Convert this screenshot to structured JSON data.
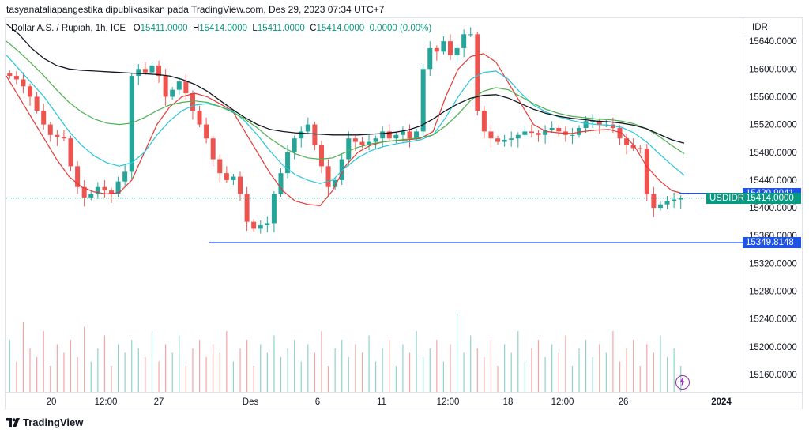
{
  "publisher_line": "tasyanataliapangestika dipublikasikan pada TradingView.com, Des 29, 2023 07:34 UTC+7",
  "legend": {
    "symbol": "Dollar A.S. / Rupiah, 1h, ICE",
    "o_label": "O",
    "o_value": "15411.0000",
    "h_label": "H",
    "h_value": "15414.0000",
    "l_label": "L",
    "l_value": "15411.0000",
    "c_label": "C",
    "c_value": "15414.0000",
    "change": "0.0000 (0.00%)"
  },
  "currency_label": "IDR",
  "brand": "TradingView",
  "colors": {
    "up": "#26a69a",
    "down": "#ef5350",
    "ema_fast": "#e53935",
    "ema_mid": "#26c6da",
    "ema_slow": "#4caf50",
    "sma_long": "#131722",
    "level_line": "#1e53e5",
    "price_tag": "#089981"
  },
  "chart_data": {
    "type": "candlestick",
    "ylim": [
      15135,
      15672
    ],
    "x_ticks": [
      "20",
      "12:00",
      "27",
      "Des",
      "6",
      "11",
      "12:00",
      "18",
      "12:00",
      "26",
      "2024"
    ],
    "y_ticks": [
      "15160.0000",
      "15200.0000",
      "15240.0000",
      "15280.0000",
      "15320.0000",
      "15360.0000",
      "15400.0000",
      "15440.0000",
      "15480.0000",
      "15520.0000",
      "15560.0000",
      "15600.0000",
      "15640.0000"
    ],
    "y_tick_values": [
      15160,
      15200,
      15240,
      15280,
      15320,
      15360,
      15400,
      15440,
      15480,
      15520,
      15560,
      15600,
      15640
    ],
    "price_labels": [
      {
        "label": "15420.9041",
        "value": 15420.9041,
        "kind": "level"
      },
      {
        "label": "15414.0000",
        "value": 15414,
        "kind": "last",
        "symbol": "USDIDR"
      },
      {
        "label": "15349.8148",
        "value": 15349.8148,
        "kind": "level"
      }
    ],
    "closes": [
      15590,
      15585,
      15575,
      15560,
      15540,
      15520,
      15505,
      15502,
      15500,
      15460,
      15430,
      15415,
      15420,
      15430,
      15425,
      15420,
      15438,
      15452,
      15590,
      15600,
      15595,
      15605,
      15590,
      15560,
      15570,
      15582,
      15565,
      15540,
      15520,
      15500,
      15470,
      15450,
      15440,
      15445,
      15420,
      15380,
      15370,
      15375,
      15378,
      15420,
      15450,
      15480,
      15500,
      15510,
      15520,
      15490,
      15460,
      15430,
      15440,
      15470,
      15500,
      15495,
      15490,
      15495,
      15500,
      15510,
      15500,
      15505,
      15510,
      15500,
      15510,
      15600,
      15630,
      15625,
      15640,
      15620,
      15630,
      15650,
      15650,
      15540,
      15510,
      15500,
      15495,
      15498,
      15500,
      15505,
      15510,
      15508,
      15505,
      15512,
      15515,
      15510,
      15505,
      15505,
      15515,
      15525,
      15525,
      15520,
      15520,
      15515,
      15500,
      15490,
      15486,
      15485,
      15420,
      15400,
      15405,
      15410,
      15412,
      15414
    ],
    "volumes": [
      0.6,
      0.35,
      0.8,
      0.5,
      0.4,
      0.7,
      0.3,
      0.55,
      0.45,
      0.6,
      0.4,
      0.75,
      0.35,
      0.5,
      0.65,
      0.3,
      0.55,
      0.45,
      0.6,
      0.5,
      0.4,
      0.7,
      0.35,
      0.55,
      0.45,
      0.65,
      0.3,
      0.5,
      0.6,
      0.4,
      0.55,
      0.45,
      0.7,
      0.35,
      0.5,
      0.6,
      0.3,
      0.55,
      0.45,
      0.65,
      0.4,
      0.5,
      0.6,
      0.35,
      0.55,
      0.45,
      0.7,
      0.3,
      0.5,
      0.6,
      0.4,
      0.55,
      0.45,
      0.65,
      0.35,
      0.5,
      0.6,
      0.3,
      0.55,
      0.45,
      0.7,
      0.4,
      0.5,
      0.6,
      0.35,
      0.55,
      0.9,
      0.45,
      0.65,
      0.5,
      0.4,
      0.6,
      0.3,
      0.55,
      0.45,
      0.7,
      0.35,
      0.5,
      0.6,
      0.4,
      0.55,
      0.45,
      0.65,
      0.3,
      0.5,
      0.6,
      0.4,
      0.55,
      0.45,
      0.7,
      0.35,
      0.5,
      0.6,
      0.3,
      0.55,
      0.45,
      0.65,
      0.4,
      0.5,
      0.3
    ],
    "ma_lines": [
      {
        "key": "ema_fast",
        "values": [
          15590,
          15560,
          15530,
          15500,
          15470,
          15445,
          15430,
          15423,
          15420,
          15422,
          15440,
          15480,
          15520,
          15545,
          15560,
          15565,
          15560,
          15550,
          15540,
          15510,
          15480,
          15450,
          15425,
          15410,
          15405,
          15403,
          15425,
          15460,
          15480,
          15490,
          15495,
          15497,
          15498,
          15500,
          15510,
          15560,
          15600,
          15618,
          15622,
          15610,
          15580,
          15550,
          15520,
          15510,
          15508,
          15507,
          15510,
          15512,
          15513,
          15508,
          15490,
          15460,
          15440,
          15425,
          15420
        ]
      },
      {
        "key": "ema_mid",
        "values": [
          15620,
          15600,
          15580,
          15560,
          15535,
          15510,
          15490,
          15475,
          15465,
          15460,
          15465,
          15480,
          15505,
          15525,
          15540,
          15548,
          15550,
          15546,
          15540,
          15525,
          15505,
          15482,
          15462,
          15448,
          15440,
          15435,
          15440,
          15458,
          15472,
          15482,
          15488,
          15492,
          15495,
          15498,
          15505,
          15530,
          15560,
          15585,
          15595,
          15597,
          15585,
          15565,
          15548,
          15538,
          15531,
          15526,
          15522,
          15520,
          15519,
          15516,
          15508,
          15495,
          15478,
          15462,
          15447
        ]
      },
      {
        "key": "ema_slow",
        "values": [
          15640,
          15625,
          15608,
          15590,
          15570,
          15552,
          15538,
          15528,
          15522,
          15520,
          15522,
          15530,
          15540,
          15548,
          15552,
          15554,
          15552,
          15546,
          15538,
          15528,
          15515,
          15500,
          15488,
          15478,
          15472,
          15470,
          15472,
          15480,
          15487,
          15492,
          15495,
          15497,
          15499,
          15501,
          15505,
          15518,
          15535,
          15555,
          15568,
          15573,
          15570,
          15560,
          15550,
          15542,
          15536,
          15532,
          15530,
          15528,
          15527,
          15525,
          15521,
          15514,
          15503,
          15490,
          15478
        ]
      },
      {
        "key": "sma_long",
        "values": [
          15665,
          15650,
          15630,
          15615,
          15605,
          15600,
          15598,
          15597,
          15596,
          15595,
          15594,
          15593,
          15592,
          15590,
          15585,
          15578,
          15568,
          15555,
          15542,
          15530,
          15520,
          15513,
          15510,
          15508,
          15507,
          15506,
          15505,
          15505,
          15505,
          15506,
          15507,
          15509,
          15512,
          15518,
          15528,
          15540,
          15550,
          15558,
          15562,
          15563,
          15558,
          15550,
          15542,
          15536,
          15532,
          15529,
          15527,
          15525,
          15524,
          15522,
          15519,
          15514,
          15506,
          15498,
          15493
        ]
      }
    ]
  }
}
